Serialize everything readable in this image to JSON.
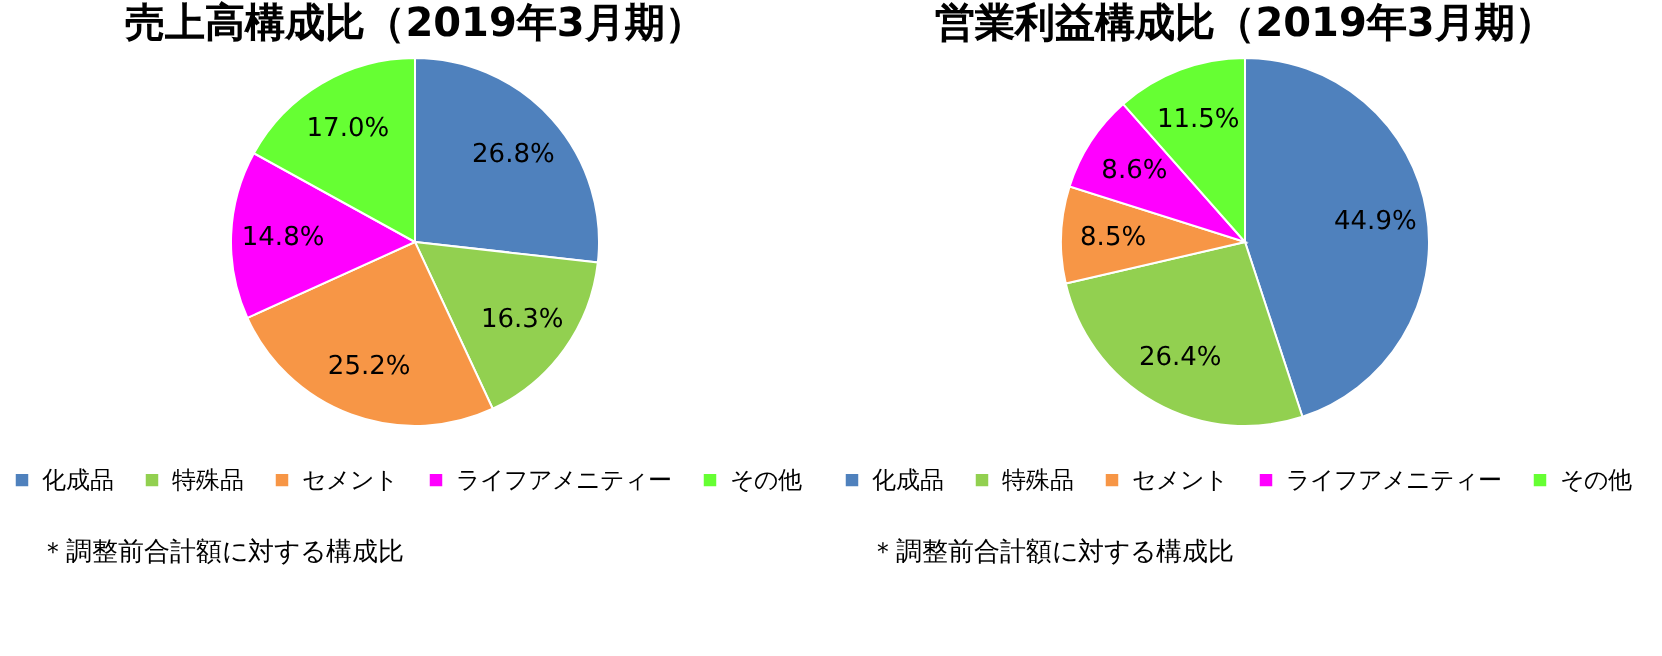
{
  "chart_data": [
    {
      "type": "pie",
      "title": "売上高構成比（2019年3月期）",
      "categories": [
        "化成品",
        "特殊品",
        "セメント",
        "ライフアメニティー",
        "その他"
      ],
      "values": [
        26.8,
        16.3,
        25.2,
        14.8,
        17.0
      ],
      "colors": [
        "#4f81bd",
        "#92d050",
        "#f79646",
        "#ff00ff",
        "#66ff33"
      ],
      "value_labels": [
        "26.8%",
        "16.3%",
        "25.2%",
        "14.8%",
        "17.0%"
      ],
      "legend": "bottom",
      "annotations": [
        "＊調整前合計額に対する構成比"
      ]
    },
    {
      "type": "pie",
      "title": "営業利益構成比（2019年3月期）",
      "categories": [
        "化成品",
        "特殊品",
        "セメント",
        "ライフアメニティー",
        "その他"
      ],
      "values": [
        44.9,
        26.4,
        8.5,
        8.6,
        11.5
      ],
      "colors": [
        "#4f81bd",
        "#92d050",
        "#f79646",
        "#ff00ff",
        "#66ff33"
      ],
      "value_labels": [
        "44.9%",
        "26.4%",
        "8.5%",
        "8.6%",
        "11.5%"
      ],
      "legend": "bottom",
      "annotations": [
        "＊調整前合計額に対する構成比"
      ]
    }
  ]
}
